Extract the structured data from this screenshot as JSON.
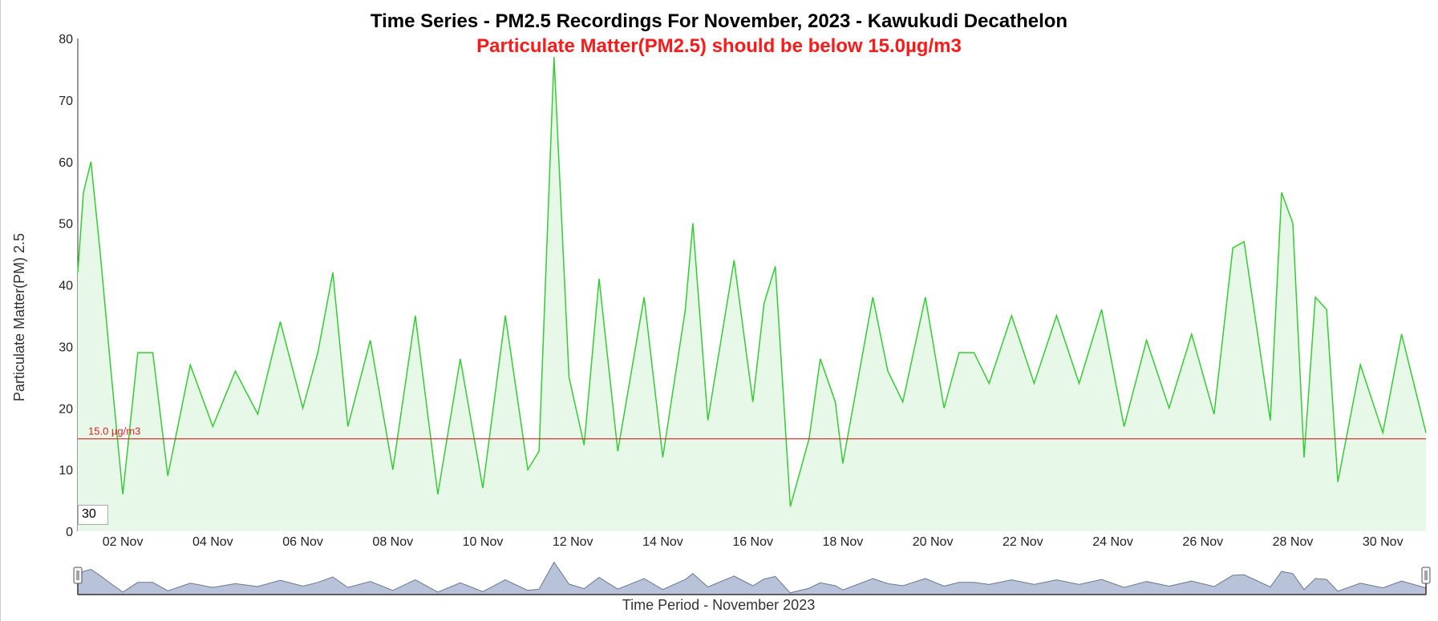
{
  "chart_data": {
    "type": "area",
    "title": "Time Series - PM2.5 Recordings For November, 2023 - Kawukudi Decathelon",
    "subtitle": "Particulate Matter(PM2.5) should be below 15.0µg/m3",
    "ylabel": "Particulate Matter(PM) 2.5",
    "xlabel": "Time Period - November 2023",
    "ylim": [
      0,
      80
    ],
    "y_ticks": [
      0,
      10,
      20,
      30,
      40,
      50,
      60,
      70,
      80
    ],
    "x_range": [
      "2023-11-01T00:00",
      "2023-11-30T23:00"
    ],
    "x_ticks": [
      "02 Nov",
      "04 Nov",
      "06 Nov",
      "08 Nov",
      "10 Nov",
      "12 Nov",
      "14 Nov",
      "16 Nov",
      "18 Nov",
      "20 Nov",
      "22 Nov",
      "24 Nov",
      "26 Nov",
      "28 Nov",
      "30 Nov"
    ],
    "x_tick_dates": [
      "2023-11-02",
      "2023-11-04",
      "2023-11-06",
      "2023-11-08",
      "2023-11-10",
      "2023-11-12",
      "2023-11-14",
      "2023-11-16",
      "2023-11-18",
      "2023-11-20",
      "2023-11-22",
      "2023-11-24",
      "2023-11-26",
      "2023-11-28",
      "2023-11-30"
    ],
    "threshold": {
      "value": 15.0,
      "label": "15.0 µg/m3",
      "color": "#e02020"
    },
    "line_color": "#33cc33",
    "fill_color": "#e8f8e8",
    "grid": false,
    "series": [
      {
        "points": [
          [
            "2023-11-01T00:00",
            42
          ],
          [
            "2023-11-01T03:00",
            55
          ],
          [
            "2023-11-01T07:00",
            60
          ],
          [
            "2023-11-01T12:00",
            45
          ],
          [
            "2023-11-01T18:00",
            25
          ],
          [
            "2023-11-02T00:00",
            6
          ],
          [
            "2023-11-02T08:00",
            29
          ],
          [
            "2023-11-02T16:00",
            29
          ],
          [
            "2023-11-03T00:00",
            9
          ],
          [
            "2023-11-03T12:00",
            27
          ],
          [
            "2023-11-04T00:00",
            17
          ],
          [
            "2023-11-04T12:00",
            26
          ],
          [
            "2023-11-05T00:00",
            19
          ],
          [
            "2023-11-05T12:00",
            34
          ],
          [
            "2023-11-06T00:00",
            20
          ],
          [
            "2023-11-06T08:00",
            29
          ],
          [
            "2023-11-06T16:00",
            42
          ],
          [
            "2023-11-07T00:00",
            17
          ],
          [
            "2023-11-07T12:00",
            31
          ],
          [
            "2023-11-08T00:00",
            10
          ],
          [
            "2023-11-08T12:00",
            35
          ],
          [
            "2023-11-09T00:00",
            6
          ],
          [
            "2023-11-09T12:00",
            28
          ],
          [
            "2023-11-10T00:00",
            7
          ],
          [
            "2023-11-10T12:00",
            35
          ],
          [
            "2023-11-11T00:00",
            10
          ],
          [
            "2023-11-11T06:00",
            13
          ],
          [
            "2023-11-11T14:00",
            77
          ],
          [
            "2023-11-11T22:00",
            25
          ],
          [
            "2023-11-12T06:00",
            14
          ],
          [
            "2023-11-12T14:00",
            41
          ],
          [
            "2023-11-13T00:00",
            13
          ],
          [
            "2023-11-13T14:00",
            38
          ],
          [
            "2023-11-14T00:00",
            12
          ],
          [
            "2023-11-14T12:00",
            36
          ],
          [
            "2023-11-14T16:00",
            50
          ],
          [
            "2023-11-15T00:00",
            18
          ],
          [
            "2023-11-15T14:00",
            44
          ],
          [
            "2023-11-16T00:00",
            21
          ],
          [
            "2023-11-16T06:00",
            37
          ],
          [
            "2023-11-16T12:00",
            43
          ],
          [
            "2023-11-16T20:00",
            4
          ],
          [
            "2023-11-17T06:00",
            15
          ],
          [
            "2023-11-17T12:00",
            28
          ],
          [
            "2023-11-17T20:00",
            21
          ],
          [
            "2023-11-18T00:00",
            11
          ],
          [
            "2023-11-18T16:00",
            38
          ],
          [
            "2023-11-19T00:00",
            26
          ],
          [
            "2023-11-19T08:00",
            21
          ],
          [
            "2023-11-19T20:00",
            38
          ],
          [
            "2023-11-20T06:00",
            20
          ],
          [
            "2023-11-20T14:00",
            29
          ],
          [
            "2023-11-20T22:00",
            29
          ],
          [
            "2023-11-21T06:00",
            24
          ],
          [
            "2023-11-21T18:00",
            35
          ],
          [
            "2023-11-22T06:00",
            24
          ],
          [
            "2023-11-22T18:00",
            35
          ],
          [
            "2023-11-23T06:00",
            24
          ],
          [
            "2023-11-23T18:00",
            36
          ],
          [
            "2023-11-24T06:00",
            17
          ],
          [
            "2023-11-24T18:00",
            31
          ],
          [
            "2023-11-25T06:00",
            20
          ],
          [
            "2023-11-25T18:00",
            32
          ],
          [
            "2023-11-26T06:00",
            19
          ],
          [
            "2023-11-26T16:00",
            46
          ],
          [
            "2023-11-26T22:00",
            47
          ],
          [
            "2023-11-27T12:00",
            18
          ],
          [
            "2023-11-27T18:00",
            55
          ],
          [
            "2023-11-28T00:00",
            50
          ],
          [
            "2023-11-28T06:00",
            12
          ],
          [
            "2023-11-28T12:00",
            38
          ],
          [
            "2023-11-28T18:00",
            36
          ],
          [
            "2023-11-29T00:00",
            8
          ],
          [
            "2023-11-29T12:00",
            27
          ],
          [
            "2023-11-30T00:00",
            16
          ],
          [
            "2023-11-30T10:00",
            32
          ],
          [
            "2023-11-30T23:00",
            16
          ]
        ]
      }
    ]
  },
  "ui": {
    "window_input_value": "30",
    "navigator_fill": "#b8c2d8",
    "navigator_line": "#6b7890"
  }
}
